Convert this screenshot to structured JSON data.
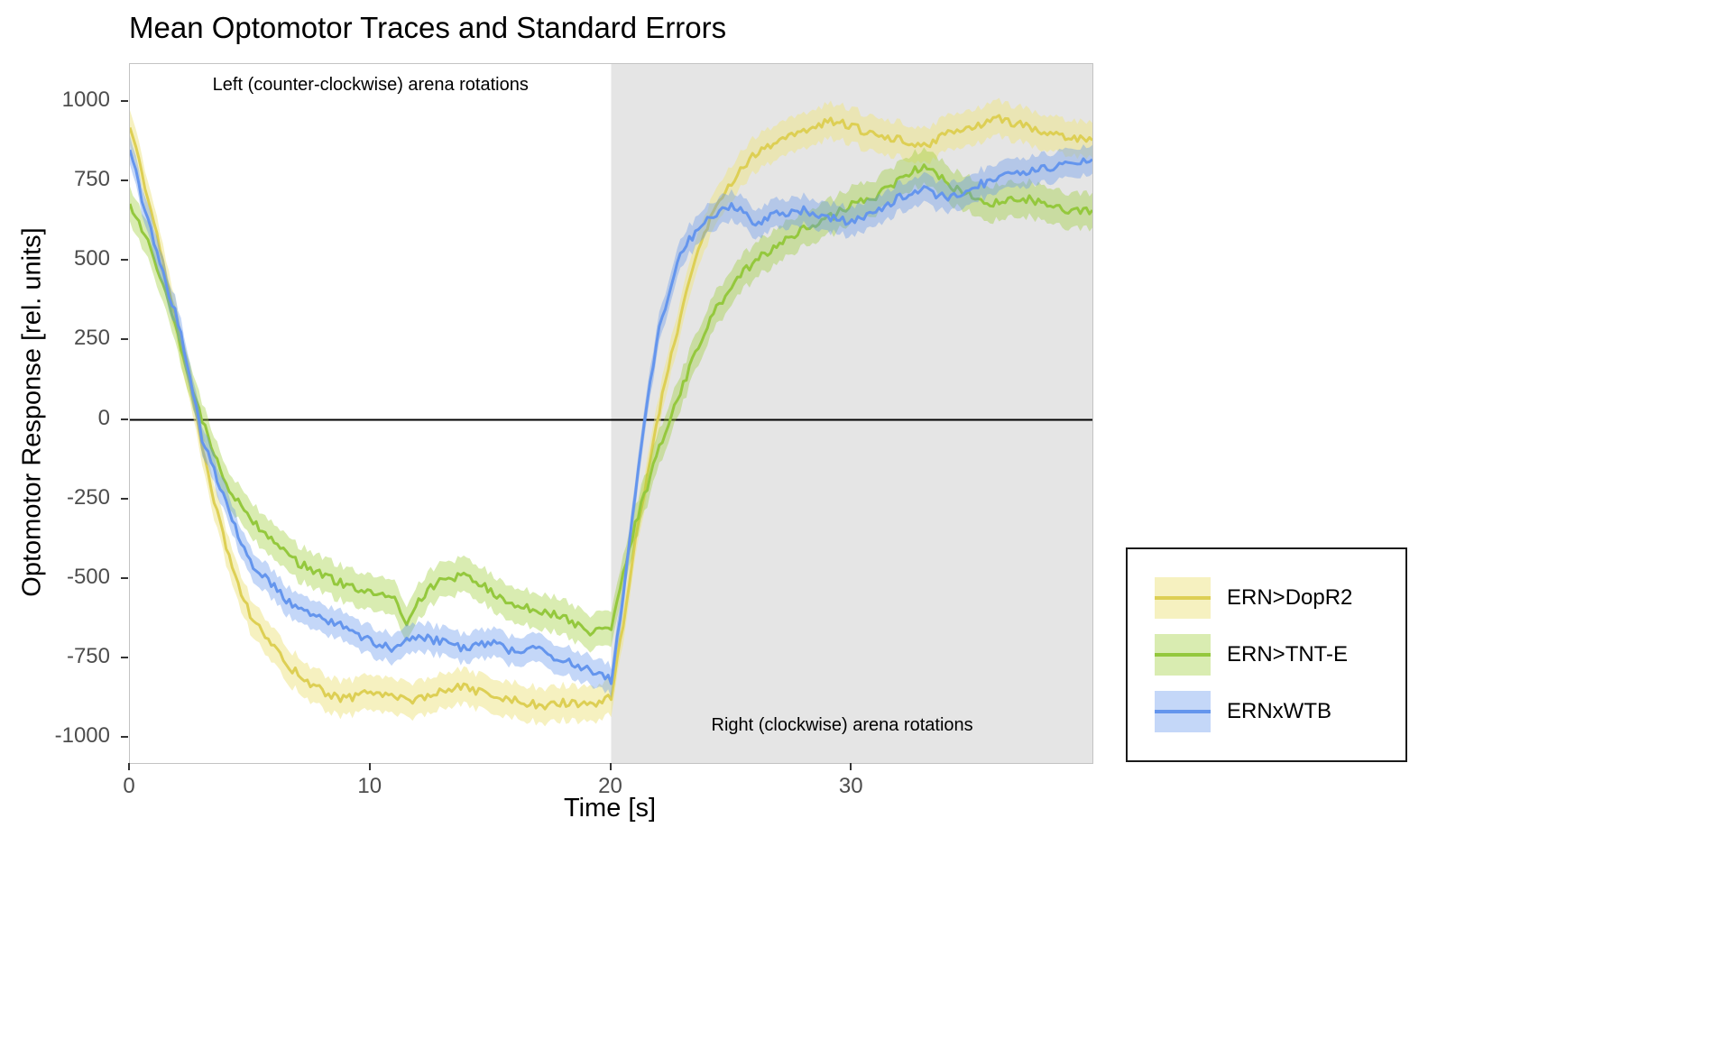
{
  "chart_data": {
    "type": "line",
    "title": "Mean Optomotor Traces and Standard Errors",
    "xlabel": "Time [s]",
    "ylabel": "Optomotor Response [rel. units]",
    "xlim": [
      0,
      40
    ],
    "ylim": [
      -1080,
      1120
    ],
    "x_ticks": [
      0,
      10,
      20,
      30
    ],
    "y_ticks": [
      -1000,
      -750,
      -500,
      -250,
      0,
      250,
      500,
      750,
      1000
    ],
    "grid": false,
    "legend_position": "right-outside",
    "zero_line": 0,
    "shaded_region": {
      "x_start": 20,
      "x_end": 40,
      "color": "#e5e5e5"
    },
    "annotations": [
      {
        "text": "Left (counter-clockwise) arena rotations",
        "position": "top-left-half"
      },
      {
        "text": "Right (clockwise) arena rotations",
        "position": "bottom-right-half"
      }
    ],
    "x_start": 0,
    "x_step": 0.5,
    "noise": 13,
    "series": [
      {
        "name": "ERN>DopR2",
        "line_color": "#ddcf54",
        "band_color": "rgba(238,230,140,0.55)",
        "se": 55,
        "values": [
          920,
          780,
          620,
          450,
          280,
          100,
          -80,
          -250,
          -400,
          -520,
          -610,
          -670,
          -720,
          -770,
          -800,
          -830,
          -855,
          -870,
          -880,
          -865,
          -850,
          -860,
          -875,
          -880,
          -880,
          -865,
          -850,
          -845,
          -840,
          -855,
          -870,
          -875,
          -880,
          -890,
          -900,
          -895,
          -890,
          -895,
          -900,
          -890,
          -870,
          -650,
          -380,
          -180,
          30,
          200,
          360,
          500,
          610,
          690,
          750,
          800,
          835,
          860,
          880,
          890,
          905,
          925,
          940,
          935,
          925,
          910,
          900,
          890,
          880,
          870,
          862,
          880,
          900,
          912,
          922,
          935,
          948,
          940,
          928,
          915,
          903,
          895,
          890,
          885,
          880
        ]
      },
      {
        "name": "ERN>TNT-E",
        "line_color": "#94c83d",
        "band_color": "rgba(154,205,50,0.38)",
        "se": 55,
        "values": [
          680,
          600,
          510,
          390,
          260,
          130,
          0,
          -110,
          -200,
          -260,
          -310,
          -350,
          -385,
          -420,
          -450,
          -470,
          -485,
          -505,
          -520,
          -530,
          -540,
          -550,
          -560,
          -640,
          -570,
          -530,
          -505,
          -495,
          -490,
          -515,
          -540,
          -560,
          -580,
          -590,
          -600,
          -610,
          -620,
          -640,
          -670,
          -660,
          -650,
          -480,
          -330,
          -210,
          -90,
          10,
          110,
          210,
          300,
          365,
          420,
          465,
          500,
          530,
          558,
          580,
          600,
          615,
          632,
          655,
          680,
          692,
          705,
          728,
          752,
          778,
          805,
          775,
          742,
          720,
          702,
          690,
          682,
          690,
          700,
          692,
          680,
          670,
          662,
          660,
          660
        ]
      },
      {
        "name": "ERNxWTB",
        "line_color": "#6495ed",
        "band_color": "rgba(100,149,237,0.38)",
        "se": 45,
        "values": [
          850,
          700,
          560,
          430,
          310,
          130,
          -60,
          -160,
          -260,
          -360,
          -450,
          -490,
          -525,
          -565,
          -600,
          -612,
          -622,
          -638,
          -652,
          -675,
          -700,
          -712,
          -720,
          -700,
          -682,
          -690,
          -700,
          -710,
          -720,
          -710,
          -700,
          -715,
          -730,
          -725,
          -720,
          -740,
          -760,
          -770,
          -780,
          -800,
          -820,
          -560,
          -230,
          60,
          290,
          430,
          540,
          590,
          625,
          655,
          680,
          650,
          622,
          635,
          650,
          655,
          660,
          650,
          640,
          630,
          622,
          635,
          650,
          675,
          700,
          712,
          722,
          710,
          700,
          715,
          730,
          745,
          760,
          770,
          780,
          786,
          792,
          797,
          802,
          810,
          820
        ]
      }
    ]
  }
}
